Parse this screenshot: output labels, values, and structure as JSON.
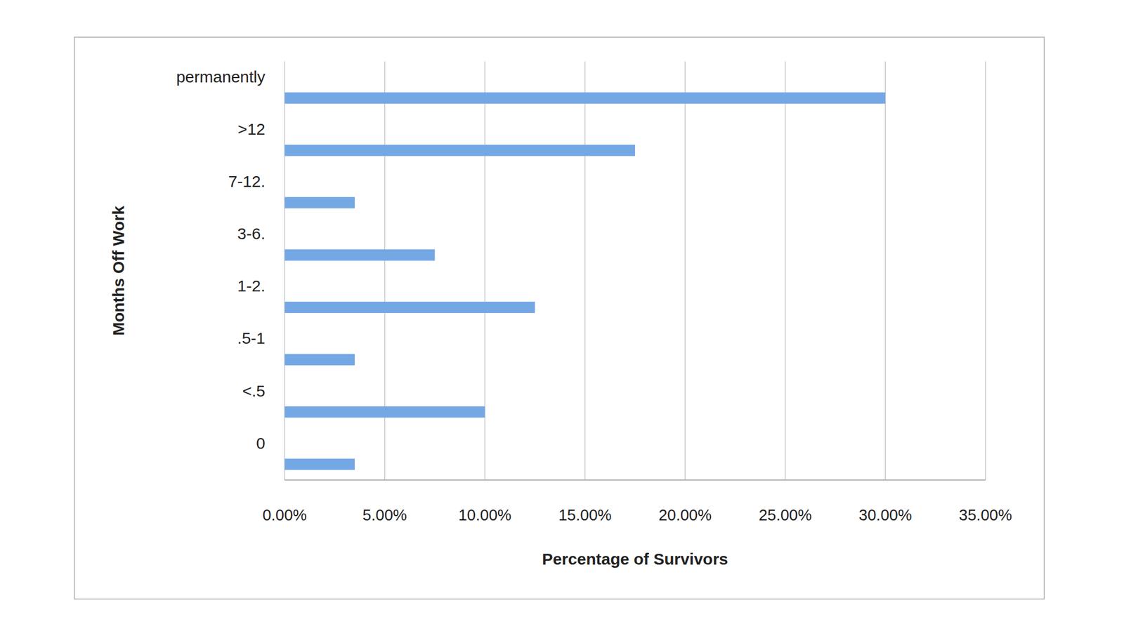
{
  "chart_data": {
    "type": "bar",
    "orientation": "horizontal",
    "categories": [
      "0",
      "<.5",
      ".5-1",
      "1-2.",
      "3-6.",
      "7-12.",
      ">12",
      "permanently"
    ],
    "values": [
      3.5,
      10,
      3.5,
      12.5,
      7.5,
      3.5,
      17.5,
      30
    ],
    "color": "#74a8e4",
    "x_label": "Percentage of Survivors",
    "y_label": "Months Off Work",
    "xlim": [
      0,
      35
    ],
    "xticks": [
      {
        "value": 0,
        "label": "0.00%"
      },
      {
        "value": 5,
        "label": "5.00%"
      },
      {
        "value": 10,
        "label": "10.00%"
      },
      {
        "value": 15,
        "label": "15.00%"
      },
      {
        "value": 20,
        "label": "20.00%"
      },
      {
        "value": 25,
        "label": "25.00%"
      },
      {
        "value": 30,
        "label": "30.00%"
      },
      {
        "value": 35,
        "label": "35.00%"
      }
    ],
    "grid": true
  }
}
